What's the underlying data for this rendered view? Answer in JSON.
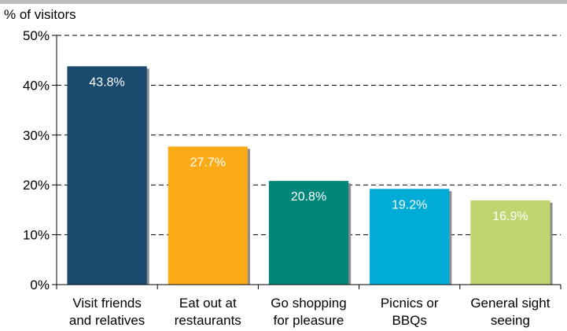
{
  "chart_data": {
    "type": "bar",
    "ylabel": "% of visitors",
    "categories": [
      [
        "Visit friends",
        "and relatives"
      ],
      [
        "Eat out at",
        "restaurants"
      ],
      [
        "Go shopping",
        "for pleasure"
      ],
      [
        "Picnics or",
        "BBQs"
      ],
      [
        "General sight",
        "seeing"
      ]
    ],
    "values": [
      43.8,
      27.7,
      20.8,
      19.2,
      16.9
    ],
    "data_labels": [
      "43.8%",
      "27.7%",
      "20.8%",
      "19.2%",
      "16.9%"
    ],
    "colors": [
      "#1a4a6e",
      "#fbab18",
      "#00877a",
      "#00acd6",
      "#bfd56f"
    ],
    "ylim": [
      0,
      50
    ],
    "yticks": [
      0,
      10,
      20,
      30,
      40,
      50
    ],
    "ytick_labels": [
      "0%",
      "10%",
      "20%",
      "30%",
      "40%",
      "50%"
    ],
    "grid": true
  }
}
